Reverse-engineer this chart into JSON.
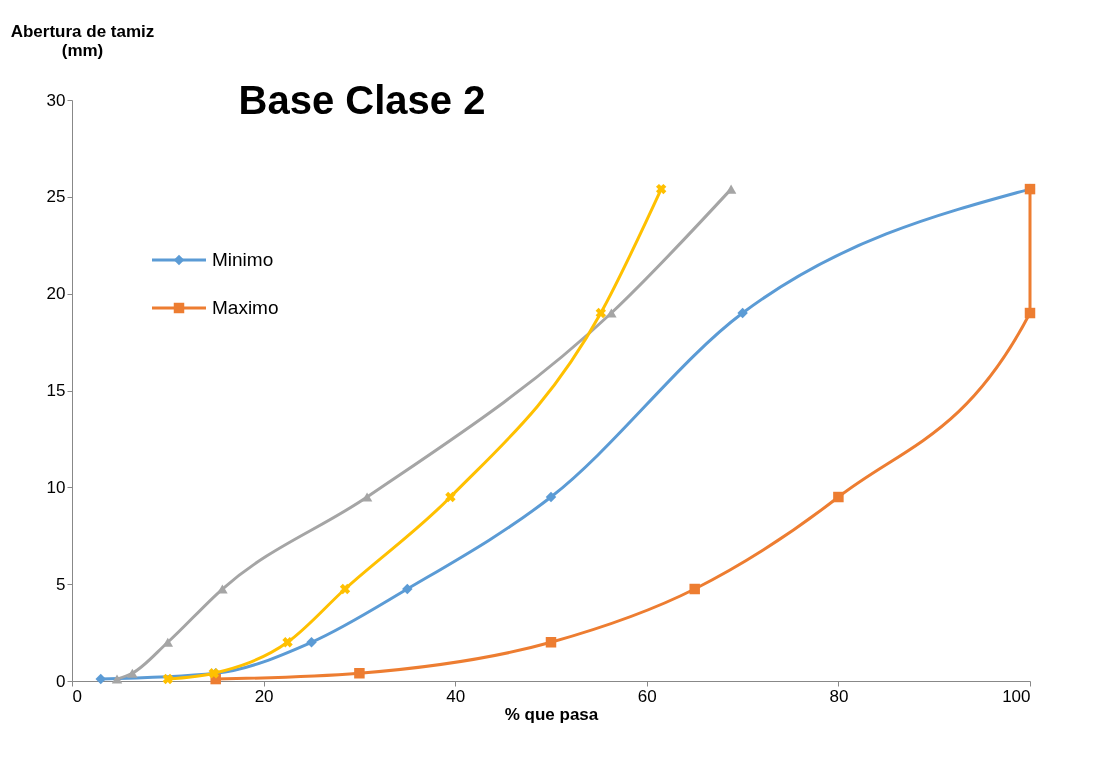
{
  "chart_data": {
    "type": "line",
    "title": "Base Clase 2",
    "xlabel": "% que pasa",
    "ylabel": "Abertura de tamiz (mm)",
    "xlim": [
      0,
      100
    ],
    "xticks": [
      0,
      20,
      40,
      60,
      80,
      100
    ],
    "ylim": [
      0,
      30
    ],
    "yticks": [
      0,
      5,
      10,
      15,
      20,
      25,
      30
    ],
    "grid": false,
    "legend": "top left",
    "series": [
      {
        "name": "Minimo",
        "color": "#5b9bd5",
        "marker": "diamond",
        "x": [
          3,
          15,
          25,
          35,
          50,
          70,
          100
        ],
        "values": [
          0.1,
          0.4,
          2.0,
          4.75,
          9.5,
          19.0,
          25.4
        ]
      },
      {
        "name": "Maximo",
        "color": "#ed7d31",
        "marker": "square",
        "x": [
          15,
          30,
          50,
          65,
          80,
          100,
          100
        ],
        "values": [
          0.1,
          0.4,
          2.0,
          4.75,
          9.5,
          19.0,
          25.4
        ]
      },
      {
        "color": "#a5a5a5",
        "marker": "triangle",
        "x": [
          4.7,
          6.3,
          10,
          15.7,
          30.8,
          56.3,
          68.8
        ],
        "values": [
          0.1,
          0.4,
          2.0,
          4.75,
          9.5,
          19.0,
          25.4
        ]
      },
      {
        "color": "#ffc000",
        "marker": "cross",
        "x": [
          10,
          14.8,
          22.5,
          28.5,
          39.5,
          55.2,
          61.5
        ],
        "values": [
          0.1,
          0.4,
          2.0,
          4.75,
          9.5,
          19.0,
          25.4
        ]
      }
    ]
  }
}
